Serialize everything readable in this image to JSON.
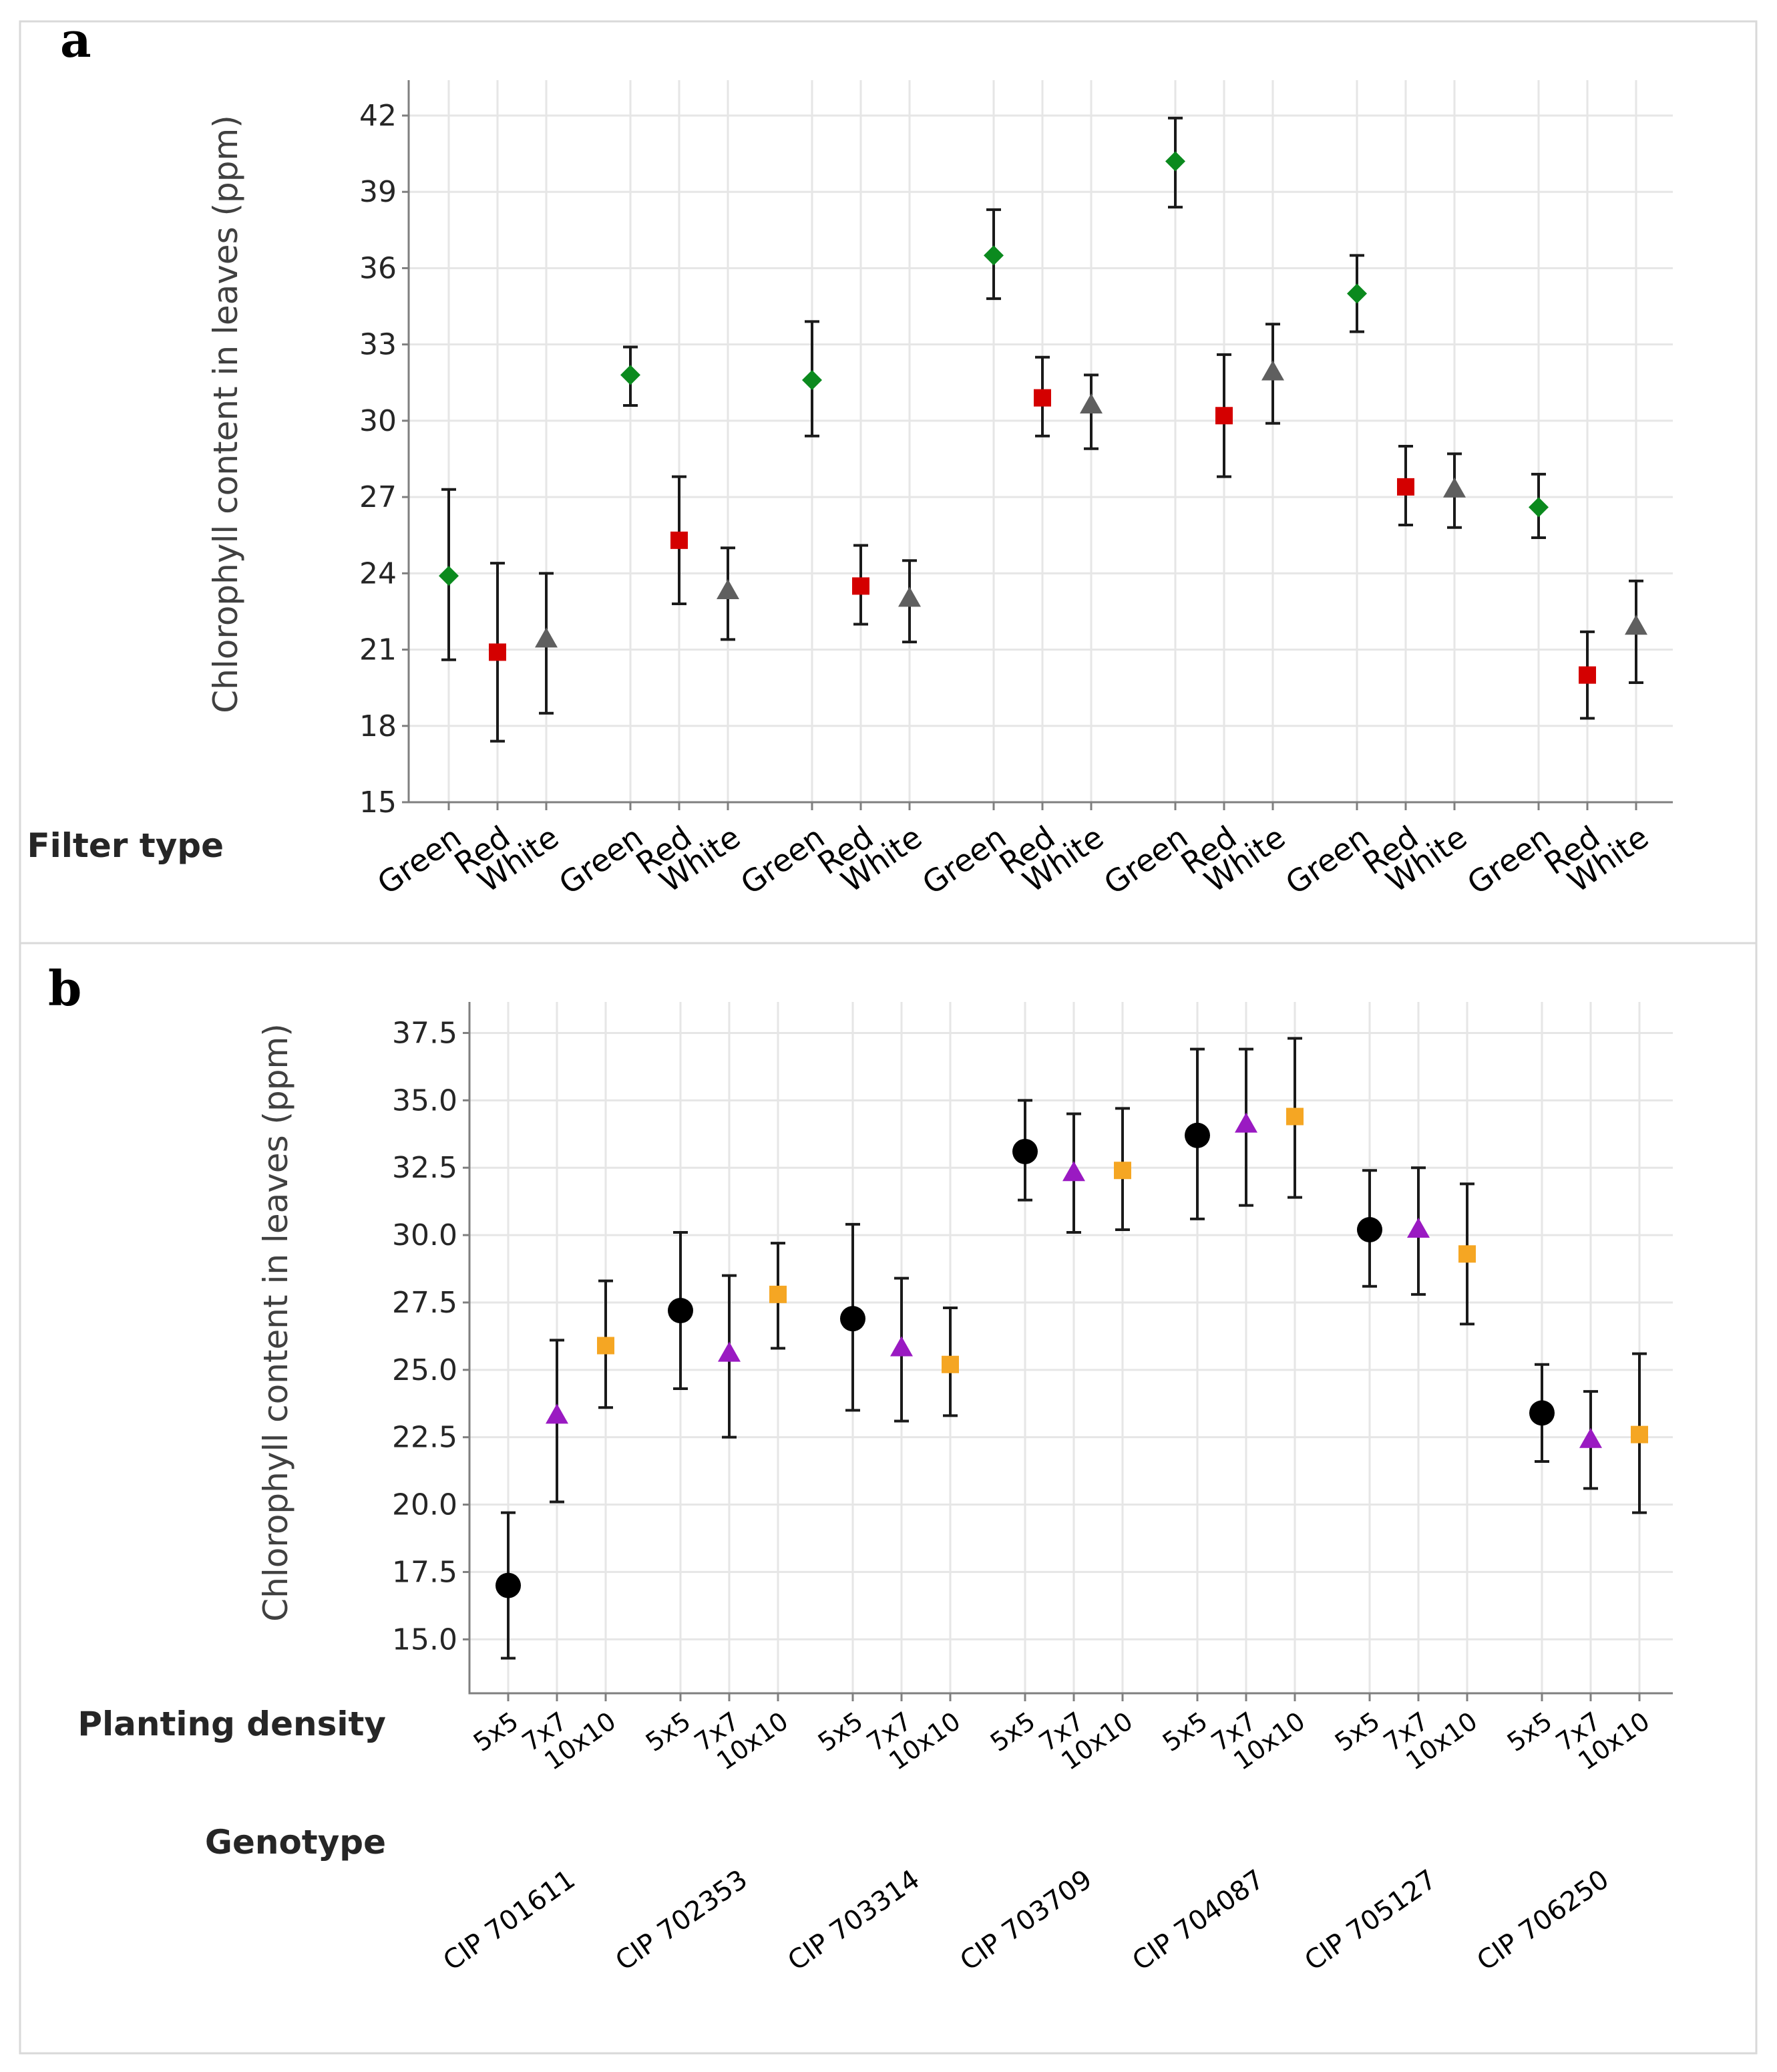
{
  "chart_data": [
    {
      "panel": "a",
      "type": "scatter",
      "ylabel": "Chlorophyll content in leaves (ppm)",
      "factor_label": "Filter type",
      "ylim": [
        15,
        42
      ],
      "yticks": [
        15,
        18,
        21,
        24,
        27,
        30,
        33,
        36,
        39,
        42
      ],
      "grid": true,
      "categories": [
        "Green",
        "Red",
        "White",
        "Green",
        "Red",
        "White",
        "Green",
        "Red",
        "White",
        "Green",
        "Red",
        "White",
        "Green",
        "Red",
        "White",
        "Green",
        "Red",
        "White",
        "Green",
        "Red",
        "White"
      ],
      "series": [
        {
          "name": "Green",
          "marker": "diamond",
          "color": "#0b8a1e",
          "means": [
            23.9,
            31.8,
            31.6,
            36.5,
            40.2,
            35.0,
            26.6
          ],
          "lower": [
            20.6,
            30.6,
            29.4,
            34.8,
            38.4,
            33.5,
            25.4
          ],
          "upper": [
            27.3,
            32.9,
            33.9,
            38.3,
            41.9,
            36.5,
            27.9
          ]
        },
        {
          "name": "Red",
          "marker": "square",
          "color": "#d40000",
          "means": [
            20.9,
            25.3,
            23.5,
            30.9,
            30.2,
            27.4,
            20.0
          ],
          "lower": [
            17.4,
            22.8,
            22.0,
            29.4,
            27.8,
            25.9,
            18.3
          ],
          "upper": [
            24.4,
            27.8,
            25.1,
            32.5,
            32.6,
            29.0,
            21.7
          ]
        },
        {
          "name": "White",
          "marker": "triangle",
          "color": "#5f5f5f",
          "means": [
            21.4,
            23.3,
            23.0,
            30.6,
            31.9,
            27.3,
            21.9
          ],
          "lower": [
            18.5,
            21.4,
            21.3,
            28.9,
            29.9,
            25.8,
            19.7
          ],
          "upper": [
            24.0,
            25.0,
            24.5,
            31.8,
            33.8,
            28.7,
            23.7
          ]
        }
      ]
    },
    {
      "panel": "b",
      "type": "scatter",
      "ylabel": "Chlorophyll content in leaves (ppm)",
      "factor_label": "Planting density",
      "group_label": "Genotype",
      "ylim": [
        13,
        38.8
      ],
      "yticks": [
        "15.0",
        "17.5",
        "20.0",
        "22.5",
        "25.0",
        "27.5",
        "30.0",
        "32.5",
        "35.0",
        "37.5"
      ],
      "grid": true,
      "categories": [
        "5x5",
        "7x7",
        "10x10",
        "5x5",
        "7x7",
        "10x10",
        "5x5",
        "7x7",
        "10x10",
        "5x5",
        "7x7",
        "10x10",
        "5x5",
        "7x7",
        "10x10",
        "5x5",
        "7x7",
        "10x10",
        "5x5",
        "7x7",
        "10x10"
      ],
      "groups": [
        "CIP 701611",
        "CIP 702353",
        "CIP 703314",
        "CIP 703709",
        "CIP 704087",
        "CIP 705127",
        "CIP 706250"
      ],
      "series": [
        {
          "name": "5x5",
          "marker": "circle",
          "color": "#000000",
          "means": [
            17.0,
            27.2,
            26.9,
            33.1,
            33.7,
            30.2,
            23.4
          ],
          "lower": [
            14.3,
            24.3,
            23.5,
            31.3,
            30.6,
            28.1,
            21.6
          ],
          "upper": [
            19.7,
            30.1,
            30.4,
            35.0,
            36.9,
            32.4,
            25.2
          ]
        },
        {
          "name": "7x7",
          "marker": "triangle",
          "color": "#9a1ac2",
          "means": [
            23.3,
            25.6,
            25.8,
            32.3,
            34.1,
            30.2,
            22.4
          ],
          "lower": [
            20.1,
            22.5,
            23.1,
            30.1,
            31.1,
            27.8,
            20.6
          ],
          "upper": [
            26.1,
            28.5,
            28.4,
            34.5,
            36.9,
            32.5,
            24.2
          ]
        },
        {
          "name": "10x10",
          "marker": "square",
          "color": "#f5a623",
          "means": [
            25.9,
            27.8,
            25.2,
            32.4,
            34.4,
            29.3,
            22.6
          ],
          "lower": [
            23.6,
            25.8,
            23.3,
            30.2,
            31.4,
            26.7,
            19.7
          ],
          "upper": [
            28.3,
            29.7,
            27.3,
            34.7,
            37.3,
            31.9,
            25.6
          ]
        }
      ]
    }
  ]
}
